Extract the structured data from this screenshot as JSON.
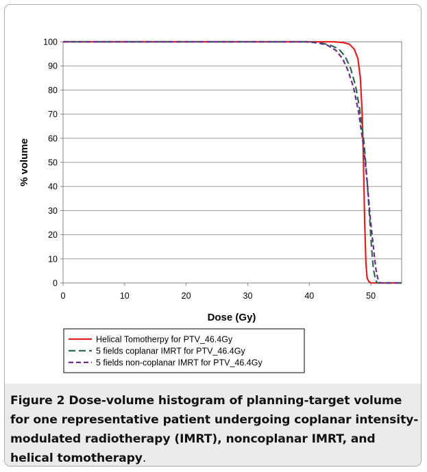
{
  "caption": {
    "label": "Figure 2",
    "text": " Dose-volume histogram of planning-target volume for one representative patient undergoing coplanar intensity-modulated radiotherapy (IMRT), noncoplanar IMRT, and helical tomotherapy",
    "end": "."
  },
  "chart_data": {
    "type": "line",
    "title": "",
    "xlabel": "Dose (Gy)",
    "ylabel": "% volume",
    "xlim": [
      0,
      55
    ],
    "ylim": [
      0,
      100
    ],
    "xticks": [
      0,
      10,
      20,
      30,
      40,
      50
    ],
    "yticks": [
      0,
      10,
      20,
      30,
      40,
      50,
      60,
      70,
      80,
      90,
      100
    ],
    "grid": "horizontal",
    "legend_position": "bottom",
    "series": [
      {
        "name": "Helical Tomotherpy for PTV_46.4Gy",
        "color": "#e02020",
        "dash": "solid",
        "x": [
          0,
          44,
          45.5,
          46.5,
          47.3,
          47.9,
          48.3,
          48.6,
          48.8,
          49.0,
          49.2,
          49.4,
          49.7,
          50.0,
          55
        ],
        "y": [
          100,
          100,
          99.7,
          99,
          97,
          93,
          85,
          70,
          50,
          25,
          8,
          2,
          0.5,
          0,
          0
        ]
      },
      {
        "name": "5 fields coplanar IMRT for PTV_46.4Gy",
        "color": "#2a6a4a",
        "dash": "long",
        "x": [
          0,
          40,
          42,
          43.5,
          44.8,
          45.8,
          46.7,
          47.5,
          48.2,
          48.9,
          49.4,
          49.8,
          50.1,
          50.4,
          50.7,
          51,
          55
        ],
        "y": [
          100,
          100,
          99.5,
          98.5,
          97,
          94,
          89,
          82,
          72,
          58,
          42,
          27,
          15,
          6,
          2,
          0,
          0
        ]
      },
      {
        "name": "5 fields non-coplanar IMRT for PTV_46.4Gy",
        "color": "#6a2a8a",
        "dash": "medium",
        "x": [
          0,
          39.5,
          41.5,
          43,
          44.3,
          45.4,
          46.3,
          47.2,
          48,
          48.8,
          49.4,
          49.9,
          50.4,
          50.8,
          51.1,
          51.5,
          55
        ],
        "y": [
          100,
          100,
          99.5,
          98.5,
          96.5,
          93,
          88,
          81,
          71,
          57,
          42,
          27,
          15,
          6,
          2,
          0,
          0
        ]
      }
    ]
  }
}
